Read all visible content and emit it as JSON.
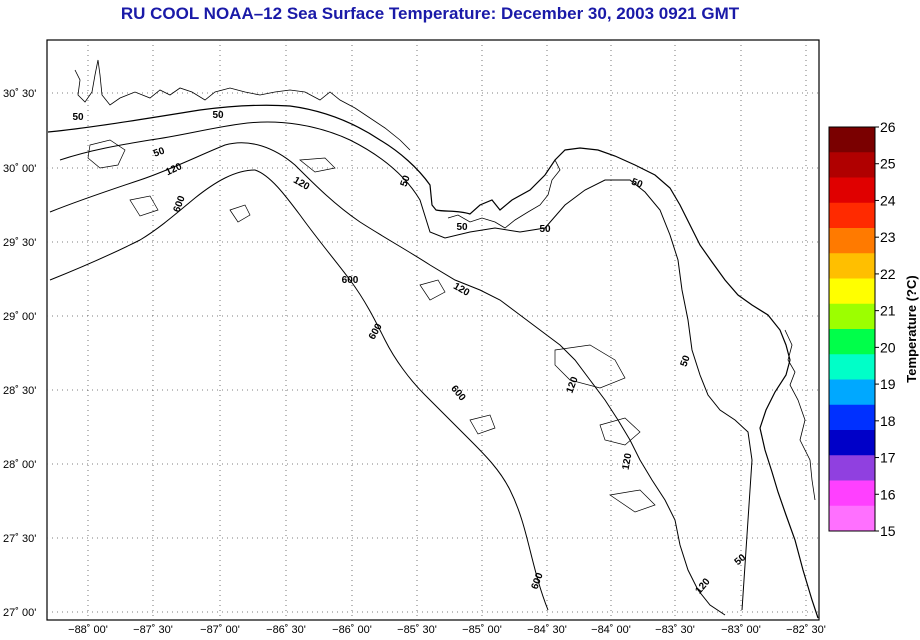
{
  "title": "RU COOL  NOAA–12  Sea Surface Temperature:  December 30, 2003 0921 GMT",
  "map": {
    "lat_labels": [
      "30˚ 30'",
      "30˚ 00'",
      "29˚ 30'",
      "29˚ 00'",
      "28˚ 30'",
      "28˚ 00'",
      "27˚ 30'",
      "27˚ 00'"
    ],
    "lon_labels": [
      "−88˚ 00'",
      "−87˚ 30'",
      "−87˚ 00'",
      "−86˚ 30'",
      "−86˚ 00'",
      "−85˚ 30'",
      "−85˚ 00'",
      "−84˚ 30'",
      "−84˚ 00'",
      "−83˚ 30'",
      "−83˚ 00'",
      "−82˚ 30'"
    ],
    "contour_labels": [
      "50",
      "50",
      "120",
      "600",
      "120",
      "50",
      "50",
      "50",
      "50",
      "600",
      "120",
      "600",
      "50",
      "120",
      "50",
      "600",
      "120",
      "600",
      "50",
      "120"
    ]
  },
  "colorbar": {
    "title": "Temperature (?C)",
    "ticks": [
      "26",
      "25",
      "24",
      "23",
      "22",
      "21",
      "20",
      "19",
      "18",
      "17",
      "16",
      "15"
    ],
    "colors": [
      "#7a0000",
      "#b00000",
      "#e00000",
      "#ff2a00",
      "#ff7a00",
      "#ffbf00",
      "#ffff00",
      "#9cff00",
      "#00ff4a",
      "#00ffc8",
      "#00a8ff",
      "#0030ff",
      "#0000c8",
      "#9040e0",
      "#ff40ff",
      "#ff70ff"
    ]
  }
}
